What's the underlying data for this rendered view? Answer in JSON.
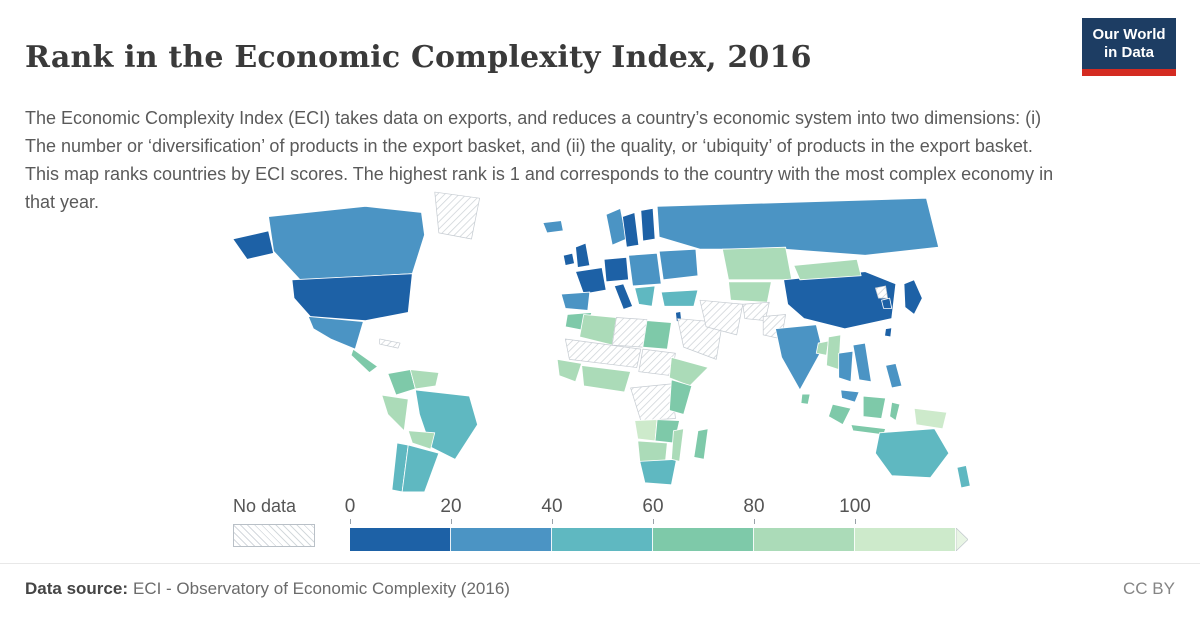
{
  "header": {
    "title": "Rank in the Economic Complexity Index, 2016",
    "logo": {
      "line1": "Our World",
      "line2": "in Data",
      "bg_color": "#1d3d63",
      "stripe_color": "#d42b21"
    }
  },
  "description": "The Economic Complexity Index (ECI) takes data on exports, and reduces a country’s economic system into two dimensions: (i) The number or ‘diversification’ of products in the export basket, and (ii) the quality, or ‘ubiquity’ of products in the export basket. This map ranks countries by ECI scores. The highest rank is 1 and corresponds to the country with the most complex economy in that year.",
  "legend": {
    "no_data_label": "No data",
    "ticks": [
      "0",
      "20",
      "40",
      "60",
      "80",
      "100"
    ],
    "colors": [
      "#1d61a6",
      "#4b94c4",
      "#5fb8c1",
      "#7ec9a9",
      "#abdbb8",
      "#cdeacb"
    ],
    "arrow_color": "#e8f5e4"
  },
  "footer": {
    "source_label": "Data source:",
    "source_text": "ECI - Observatory of Economic Complexity (2016)",
    "license": "CC BY"
  },
  "chart_data": {
    "type": "heatmap",
    "subtype": "choropleth-world-map",
    "title": "Rank in the Economic Complexity Index, 2016",
    "unit": "rank in ECI (1 = most complex economy)",
    "legend_ticks": [
      0,
      20,
      40,
      60,
      80,
      100
    ],
    "scale_open_ended_above": 100,
    "bins": [
      {
        "range": "0–20",
        "color": "#1d61a6"
      },
      {
        "range": "20–40",
        "color": "#4b94c4"
      },
      {
        "range": "40–60",
        "color": "#5fb8c1"
      },
      {
        "range": "60–80",
        "color": "#7ec9a9"
      },
      {
        "range": "80–100",
        "color": "#abdbb8"
      },
      {
        "range": "100+",
        "color": "#cdeacb"
      },
      {
        "range": "No data",
        "color": "hatched"
      }
    ],
    "regions": {
      "canada": 1,
      "usa": 0,
      "greenland": "nodata",
      "mexico": 1,
      "central_america": 3,
      "caribbean": "nodata",
      "colombia": 3,
      "venezuela": 4,
      "peru_ecuador": 4,
      "brazil": 2,
      "bolivia": 4,
      "chile": 2,
      "argentina": 2,
      "iceland": 1,
      "ireland": 0,
      "uk": 0,
      "norway": 1,
      "sweden": 0,
      "finland": 0,
      "france": 0,
      "spain_portugal": 1,
      "germany_central": 0,
      "italy": 0,
      "eastern_europe": 1,
      "balkans": 2,
      "ukraine_belarus": 1,
      "russia": 1,
      "morocco": 3,
      "algeria": 4,
      "libya": "nodata",
      "egypt": 3,
      "sahel": "nodata",
      "west_africa_coast": 4,
      "nigeria_gulf": 4,
      "sudan": "nodata",
      "horn_of_africa": 4,
      "drc": "nodata",
      "east_africa": 3,
      "angola": 5,
      "zambia_zimbabwe": 3,
      "namibia_botswana": 4,
      "south_africa": 2,
      "mozambique": 4,
      "madagascar": 3,
      "turkey": 2,
      "israel": 0,
      "arabian_peninsula": "nodata",
      "iran_iraq": "nodata",
      "kazakhstan": 4,
      "central_asia": 4,
      "afghanistan": "nodata",
      "pakistan": "nodata",
      "india": 1,
      "bangladesh": 4,
      "sri_lanka": 3,
      "myanmar": 4,
      "thailand": 1,
      "vietnam_laos": 1,
      "malaysia": 1,
      "sumatra": 3,
      "borneo": 3,
      "java": 3,
      "sulawesi": 3,
      "new_guinea": 5,
      "philippines": 1,
      "china": 0,
      "mongolia": 4,
      "north_korea": "nodata",
      "south_korea": 0,
      "japan": 0,
      "taiwan": 0,
      "australia": 2,
      "new_zealand": 2
    }
  }
}
